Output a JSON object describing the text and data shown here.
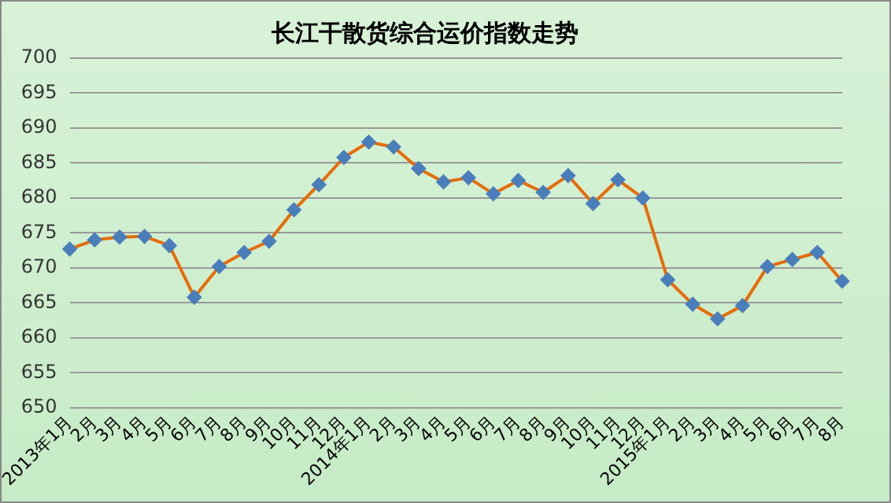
{
  "chart_data": {
    "type": "line",
    "title": "长江干散货综合运价指数走势",
    "categories": [
      "2013年1月",
      "2月",
      "3月",
      "4月",
      "5月",
      "6月",
      "7月",
      "8月",
      "9月",
      "10月",
      "11月",
      "12月",
      "2014年1月",
      "2月",
      "3月",
      "4月",
      "5月",
      "6月",
      "7月",
      "8月",
      "9月",
      "10月",
      "11月",
      "12月",
      "2015年1月",
      "2月",
      "3月",
      "4月",
      "5月",
      "6月",
      "7月",
      "8月"
    ],
    "series": [
      {
        "color": "#e46c0a",
        "values": [
          672.7,
          674,
          674.4,
          674.5,
          673.2,
          665.8,
          670.2,
          672.2,
          673.8,
          678.3,
          681.9,
          685.8,
          688,
          687.3,
          684.2,
          682.3,
          682.9,
          680.6,
          682.5,
          680.8,
          683.2,
          679.2,
          682.6,
          680,
          668.3,
          664.8,
          662.7,
          664.6,
          670.2,
          671.2,
          672.2,
          668.1
        ]
      }
    ],
    "ylim": [
      650,
      700
    ],
    "yticks": [
      650,
      655,
      660,
      665,
      670,
      675,
      680,
      685,
      690,
      695,
      700
    ],
    "grid": "y",
    "legend": false,
    "marker": "diamond",
    "line_style": "solid"
  }
}
